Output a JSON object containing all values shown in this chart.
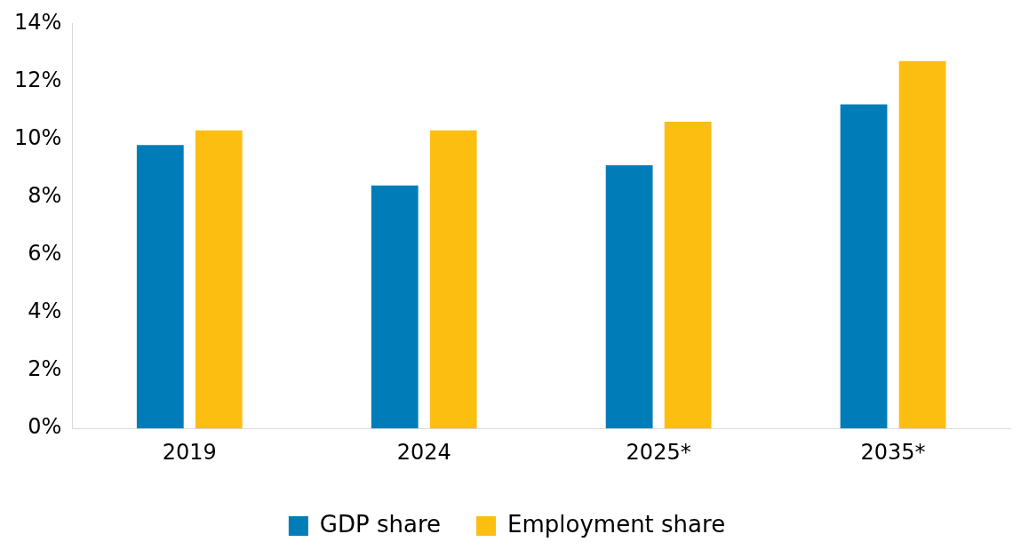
{
  "chart_data": {
    "type": "bar",
    "categories": [
      "2019",
      "2024",
      "2025*",
      "2035*"
    ],
    "series": [
      {
        "name": "GDP share",
        "color": "#007db8",
        "values": [
          9.8,
          8.4,
          9.1,
          11.2
        ]
      },
      {
        "name": "Employment share",
        "color": "#fdbe12",
        "values": [
          10.3,
          10.3,
          10.6,
          12.7
        ]
      }
    ],
    "ylim": [
      0,
      14
    ],
    "yticks": [
      {
        "value": 0,
        "label": "0%"
      },
      {
        "value": 2,
        "label": "2%"
      },
      {
        "value": 4,
        "label": "4%"
      },
      {
        "value": 6,
        "label": "6%"
      },
      {
        "value": 8,
        "label": "8%"
      },
      {
        "value": 10,
        "label": "10%"
      },
      {
        "value": 12,
        "label": "12%"
      },
      {
        "value": 14,
        "label": "14%"
      }
    ],
    "grid": false,
    "legend": "bottom"
  }
}
